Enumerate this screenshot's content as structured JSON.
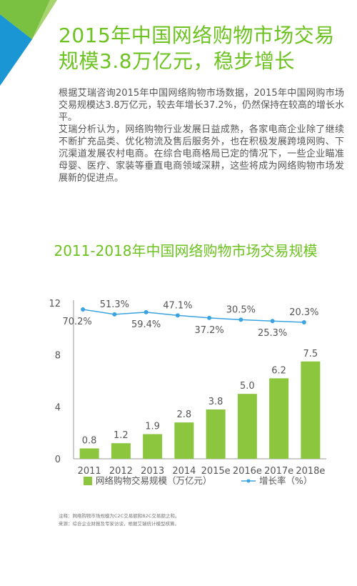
{
  "headline": "2015年中国网络购物市场交易规模3.8万亿元，稳步增长",
  "paragraphs": [
    "根据艾瑞咨询2015年中国网络购物市场数据，2015年中国网购市场交易规模达3.8万亿元，较去年增长37.2%，仍然保持在较高的增长水平。",
    "艾瑞分析认为，网络购物行业发展日益成熟，各家电商企业除了继续不断扩充品类、优化物流及售后服务外，也在积极发展跨境网购、下沉渠道发展农村电商。在综合电商格局已定的情况下，一些企业瞄准母婴、医疗、家装等垂直电商领域深耕，这些将成为网络购物市场发展新的促进点。"
  ],
  "footnotes": [
    "注释：网络购物市场规模为C2C交易额和B2C交易额之和。",
    "来源：综合企业财报及专家访谈，根据艾瑞统计模型核算。"
  ],
  "colors": {
    "accent": "#6cc21f",
    "bar": "#8cc63f",
    "line": "#3ba4e0",
    "corner_blue": "#1a96d4",
    "corner_green": "#7ac142"
  },
  "chart_data": {
    "type": "bar",
    "title": "2011-2018年中国网络购物市场交易规模",
    "categories": [
      "2011",
      "2012",
      "2013",
      "2014",
      "2015e",
      "2016e",
      "2017e",
      "2018e"
    ],
    "series": [
      {
        "name": "网络购物交易规模（万亿元）",
        "type": "bar",
        "axis": "left",
        "values": [
          0.8,
          1.2,
          1.9,
          2.8,
          3.8,
          5.0,
          6.2,
          7.5
        ],
        "labels": [
          "0.8",
          "1.2",
          "1.9",
          "2.8",
          "3.8",
          "5.0",
          "6.2",
          "7.5"
        ]
      },
      {
        "name": "增长率（%）",
        "type": "line",
        "axis": "right",
        "values": [
          70.2,
          51.3,
          59.4,
          47.1,
          37.2,
          30.5,
          25.3,
          20.3
        ],
        "labels": [
          "70.2%",
          "51.3%",
          "59.4%",
          "47.1%",
          "37.2%",
          "30.5%",
          "25.3%",
          "20.3%"
        ]
      }
    ],
    "ylim": [
      0,
      12
    ],
    "yticks": [
      "0",
      "4",
      "8",
      "12"
    ],
    "legend": "bottom"
  }
}
